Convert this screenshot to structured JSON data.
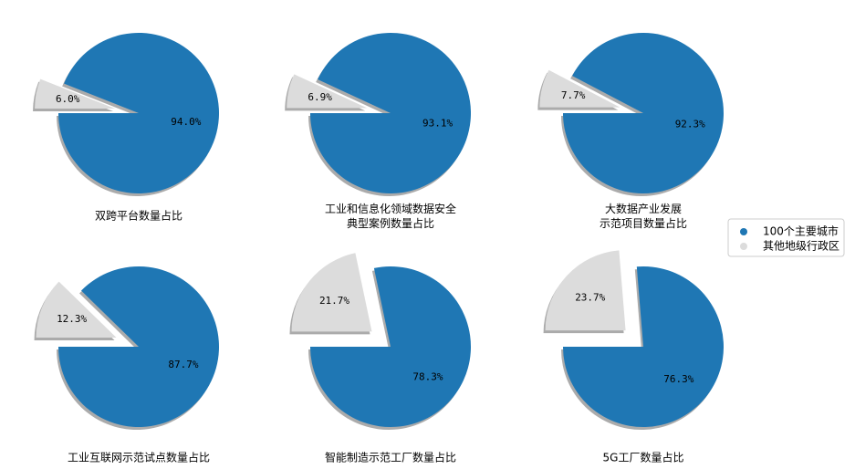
{
  "chart_data": [
    {
      "type": "pie",
      "title": "双跨平台数量占比",
      "categories": [
        "100个主要城市",
        "其他地级行政区"
      ],
      "values": [
        94.0,
        6.0
      ],
      "value_labels": [
        "94.0%",
        "6.0%"
      ],
      "colors": [
        "#1f77b4",
        "#dcdcdc"
      ]
    },
    {
      "type": "pie",
      "title": "工业和信息化领域数据安全\n典型案例数量占比",
      "categories": [
        "100个主要城市",
        "其他地级行政区"
      ],
      "values": [
        93.1,
        6.9
      ],
      "value_labels": [
        "93.1%",
        "6.9%"
      ],
      "colors": [
        "#1f77b4",
        "#dcdcdc"
      ]
    },
    {
      "type": "pie",
      "title": "大数据产业发展\n示范项目数量占比",
      "categories": [
        "100个主要城市",
        "其他地级行政区"
      ],
      "values": [
        92.3,
        7.7
      ],
      "value_labels": [
        "92.3%",
        "7.7%"
      ],
      "colors": [
        "#1f77b4",
        "#dcdcdc"
      ]
    },
    {
      "type": "pie",
      "title": "工业互联网示范试点数量占比",
      "categories": [
        "100个主要城市",
        "其他地级行政区"
      ],
      "values": [
        87.7,
        12.3
      ],
      "value_labels": [
        "87.7%",
        "12.3%"
      ],
      "colors": [
        "#1f77b4",
        "#dcdcdc"
      ]
    },
    {
      "type": "pie",
      "title": "智能制造示范工厂数量占比",
      "categories": [
        "100个主要城市",
        "其他地级行政区"
      ],
      "values": [
        78.3,
        21.7
      ],
      "value_labels": [
        "78.3%",
        "21.7%"
      ],
      "colors": [
        "#1f77b4",
        "#dcdcdc"
      ]
    },
    {
      "type": "pie",
      "title": "5G工厂数量占比",
      "categories": [
        "100个主要城市",
        "其他地级行政区"
      ],
      "values": [
        76.3,
        23.7
      ],
      "value_labels": [
        "76.3%",
        "23.7%"
      ],
      "colors": [
        "#1f77b4",
        "#dcdcdc"
      ]
    }
  ]
}
